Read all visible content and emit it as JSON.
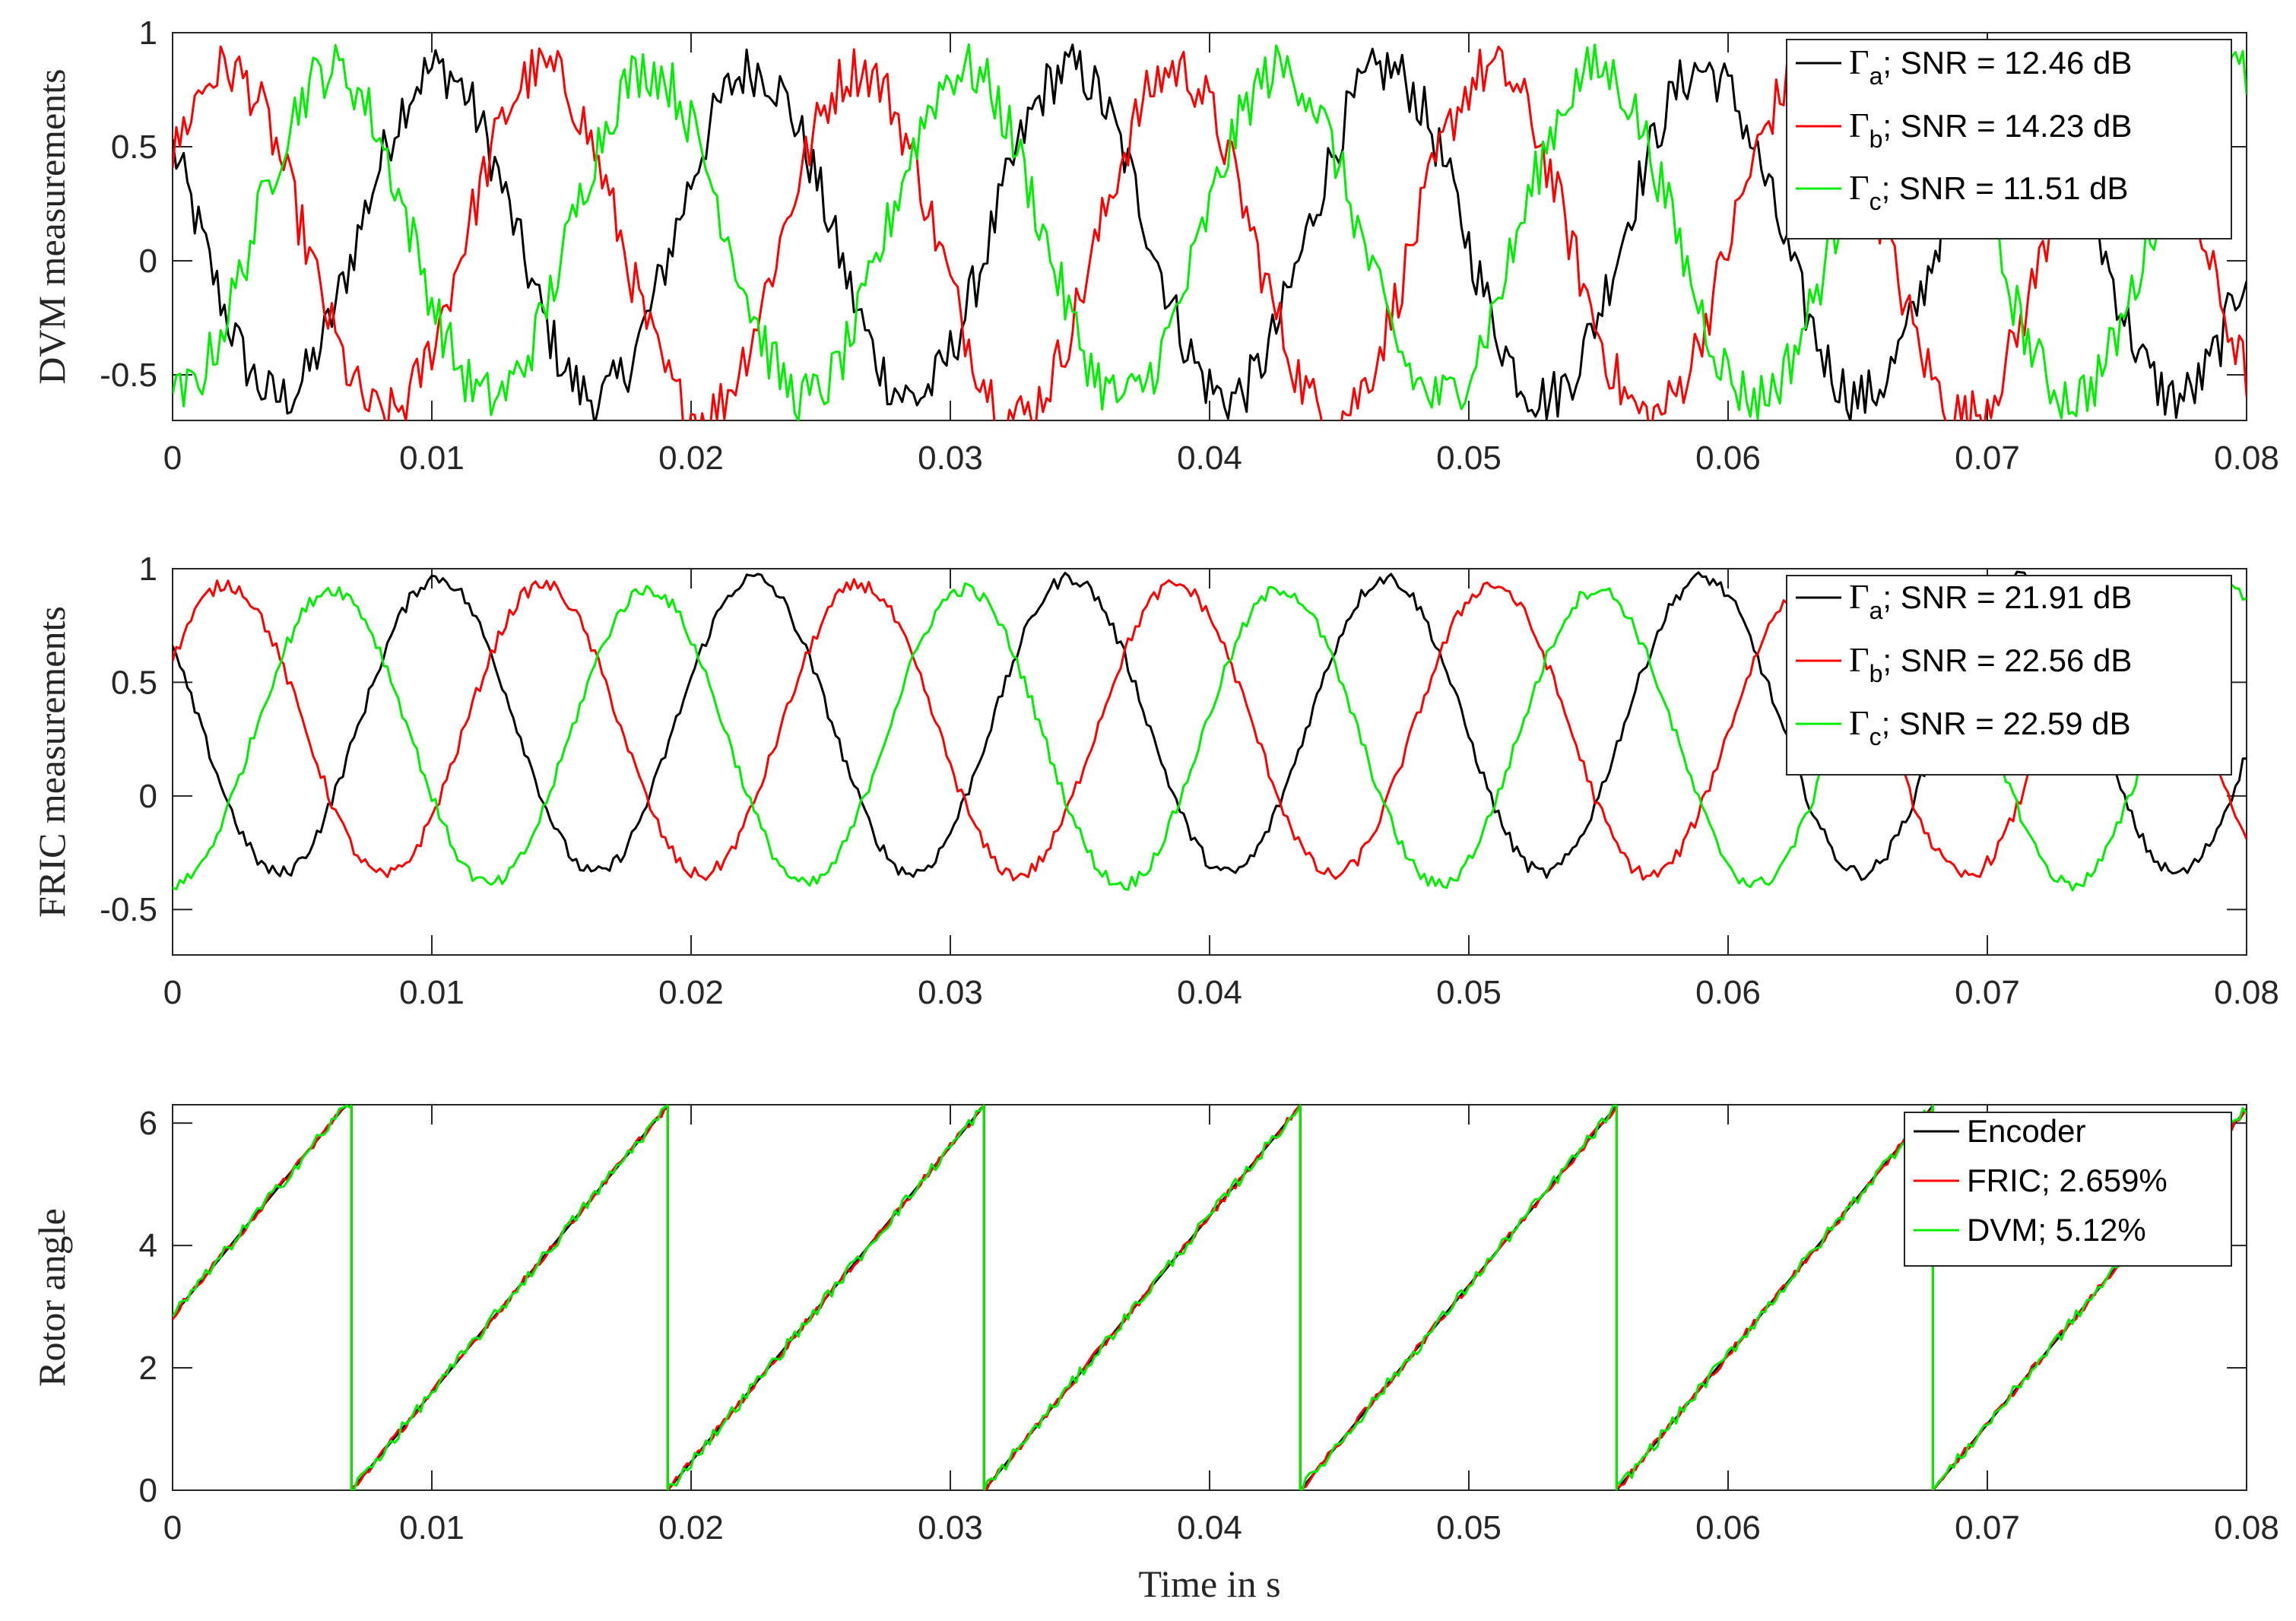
{
  "chart_data": [
    {
      "type": "line",
      "ylabel": "DVM measurements",
      "xlabel": "",
      "xlim": [
        0,
        0.08
      ],
      "ylim": [
        -0.7,
        1.0
      ],
      "xticks": [
        "0",
        "0.01",
        "0.02",
        "0.03",
        "0.04",
        "0.05",
        "0.06",
        "0.07",
        "0.08"
      ],
      "yticks": [
        "1",
        "0.5",
        "0",
        "-0.5"
      ],
      "ytick_values": [
        1,
        0.5,
        0,
        -0.5
      ],
      "legend_position": "top-right",
      "series_model": {
        "kind": "three-phase",
        "period_s": 0.0122,
        "phase0_rad": 1.02,
        "noise_amplitude": 0.12
      },
      "series": [
        {
          "symbol": "Γ",
          "sub": "a",
          "label_rest": "; SNR = 12.46 dB",
          "color": "#000000",
          "offset": 0.12,
          "amplitude": 0.72,
          "phase_shift": 0
        },
        {
          "symbol": "Γ",
          "sub": "b",
          "label_rest": "; SNR = 14.23 dB",
          "color": "#ff0000",
          "offset": 0.08,
          "amplitude": 0.76,
          "phase_shift": -2.094
        },
        {
          "symbol": "Γ",
          "sub": "c",
          "label_rest": "; SNR = 11.51 dB",
          "color": "#00ee00",
          "offset": 0.12,
          "amplitude": 0.72,
          "phase_shift": 2.094
        }
      ]
    },
    {
      "type": "line",
      "ylabel": "FRIC measurements",
      "xlabel": "",
      "xlim": [
        0,
        0.08
      ],
      "ylim": [
        -0.7,
        1.0
      ],
      "xticks": [
        "0",
        "0.01",
        "0.02",
        "0.03",
        "0.04",
        "0.05",
        "0.06",
        "0.07",
        "0.08"
      ],
      "yticks": [
        "1",
        "0.5",
        "0",
        "-0.5"
      ],
      "ytick_values": [
        1,
        0.5,
        0,
        -0.5
      ],
      "legend_position": "top-right",
      "series_model": {
        "kind": "three-phase",
        "period_s": 0.0122,
        "phase0_rad": 1.02,
        "noise_amplitude": 0.03
      },
      "series": [
        {
          "symbol": "Γ",
          "sub": "a",
          "label_rest": "; SNR = 21.91 dB",
          "color": "#000000",
          "offset": 0.31,
          "amplitude": 0.65,
          "phase_shift": 0
        },
        {
          "symbol": "Γ",
          "sub": "b",
          "label_rest": "; SNR = 22.56 dB",
          "color": "#ff0000",
          "offset": 0.29,
          "amplitude": 0.64,
          "phase_shift": -2.094
        },
        {
          "symbol": "Γ",
          "sub": "c",
          "label_rest": "; SNR = 22.59 dB",
          "color": "#00ee00",
          "offset": 0.26,
          "amplitude": 0.65,
          "phase_shift": 2.094
        }
      ]
    },
    {
      "type": "line",
      "ylabel": "Rotor angle",
      "xlabel": "Time in s",
      "xlim": [
        0,
        0.08
      ],
      "ylim": [
        0,
        6.3
      ],
      "xticks": [
        "0",
        "0.01",
        "0.02",
        "0.03",
        "0.04",
        "0.05",
        "0.06",
        "0.07",
        "0.08"
      ],
      "yticks": [
        "6",
        "4",
        "2",
        "0"
      ],
      "ytick_values": [
        6,
        4,
        2,
        0
      ],
      "legend_position": "top-right",
      "series_model": {
        "kind": "sawtooth",
        "period_s": 0.0122,
        "wrap_times_s": [
          0.0069,
          0.0191,
          0.0313,
          0.0435,
          0.0557,
          0.0679
        ],
        "y_start": 2.85,
        "y_max": 6.283
      },
      "series": [
        {
          "label": "Encoder",
          "color": "#000000",
          "noise_amplitude": 0.0
        },
        {
          "label": "FRIC; 2.659%",
          "color": "#ff0000",
          "noise_amplitude": 0.06
        },
        {
          "label": "DVM; 5.12%",
          "color": "#00ee00",
          "noise_amplitude": 0.1
        }
      ]
    }
  ]
}
